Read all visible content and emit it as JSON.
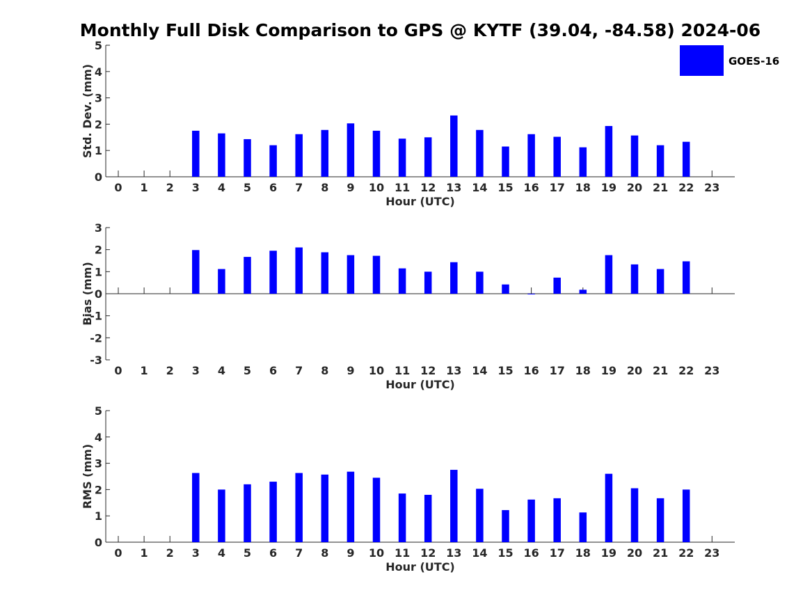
{
  "title": "Monthly Full Disk Comparison to GPS @ KYTF (39.04, -84.58) 2024-06",
  "legend": {
    "label": "GOES-16",
    "color": "#0000ff",
    "placement": "top-right"
  },
  "chart_data": [
    {
      "type": "bar",
      "xlabel": "Hour (UTC)",
      "ylabel": "Std. Dev. (mm)",
      "ylim": [
        0,
        5
      ],
      "yticks": [
        "0",
        "1",
        "2",
        "3",
        "4",
        "5"
      ],
      "categories": [
        "0",
        "1",
        "2",
        "3",
        "4",
        "5",
        "6",
        "7",
        "8",
        "9",
        "10",
        "11",
        "12",
        "13",
        "14",
        "15",
        "16",
        "17",
        "18",
        "19",
        "20",
        "21",
        "22",
        "23"
      ],
      "series": [
        {
          "name": "GOES-16",
          "color": "#0000ff",
          "values": [
            null,
            null,
            null,
            1.75,
            1.65,
            1.43,
            1.2,
            1.62,
            1.78,
            2.03,
            1.75,
            1.45,
            1.5,
            2.33,
            1.78,
            1.15,
            1.62,
            1.52,
            1.12,
            1.93,
            1.57,
            1.2,
            1.33,
            null
          ]
        }
      ]
    },
    {
      "type": "bar",
      "xlabel": "Hour (UTC)",
      "ylabel": "Bias (mm)",
      "ylim": [
        -3,
        3
      ],
      "yticks": [
        "-3",
        "-2",
        "-1",
        "0",
        "1",
        "2",
        "3"
      ],
      "categories": [
        "0",
        "1",
        "2",
        "3",
        "4",
        "5",
        "6",
        "7",
        "8",
        "9",
        "10",
        "11",
        "12",
        "13",
        "14",
        "15",
        "16",
        "17",
        "18",
        "19",
        "20",
        "21",
        "22",
        "23"
      ],
      "series": [
        {
          "name": "GOES-16",
          "color": "#0000ff",
          "values": [
            null,
            null,
            null,
            1.98,
            1.12,
            1.67,
            1.95,
            2.1,
            1.88,
            1.75,
            1.72,
            1.15,
            1.0,
            1.43,
            1.0,
            0.42,
            -0.03,
            0.73,
            0.18,
            1.75,
            1.33,
            1.12,
            1.47,
            null
          ]
        }
      ]
    },
    {
      "type": "bar",
      "xlabel": "Hour (UTC)",
      "ylabel": "RMS (mm)",
      "ylim": [
        0,
        5
      ],
      "yticks": [
        "0",
        "1",
        "2",
        "3",
        "4",
        "5"
      ],
      "categories": [
        "0",
        "1",
        "2",
        "3",
        "4",
        "5",
        "6",
        "7",
        "8",
        "9",
        "10",
        "11",
        "12",
        "13",
        "14",
        "15",
        "16",
        "17",
        "18",
        "19",
        "20",
        "21",
        "22",
        "23"
      ],
      "series": [
        {
          "name": "GOES-16",
          "color": "#0000ff",
          "values": [
            null,
            null,
            null,
            2.63,
            2.0,
            2.2,
            2.3,
            2.63,
            2.57,
            2.68,
            2.45,
            1.85,
            1.8,
            2.75,
            2.03,
            1.22,
            1.62,
            1.67,
            1.13,
            2.6,
            2.05,
            1.67,
            2.0,
            null
          ]
        }
      ]
    }
  ]
}
